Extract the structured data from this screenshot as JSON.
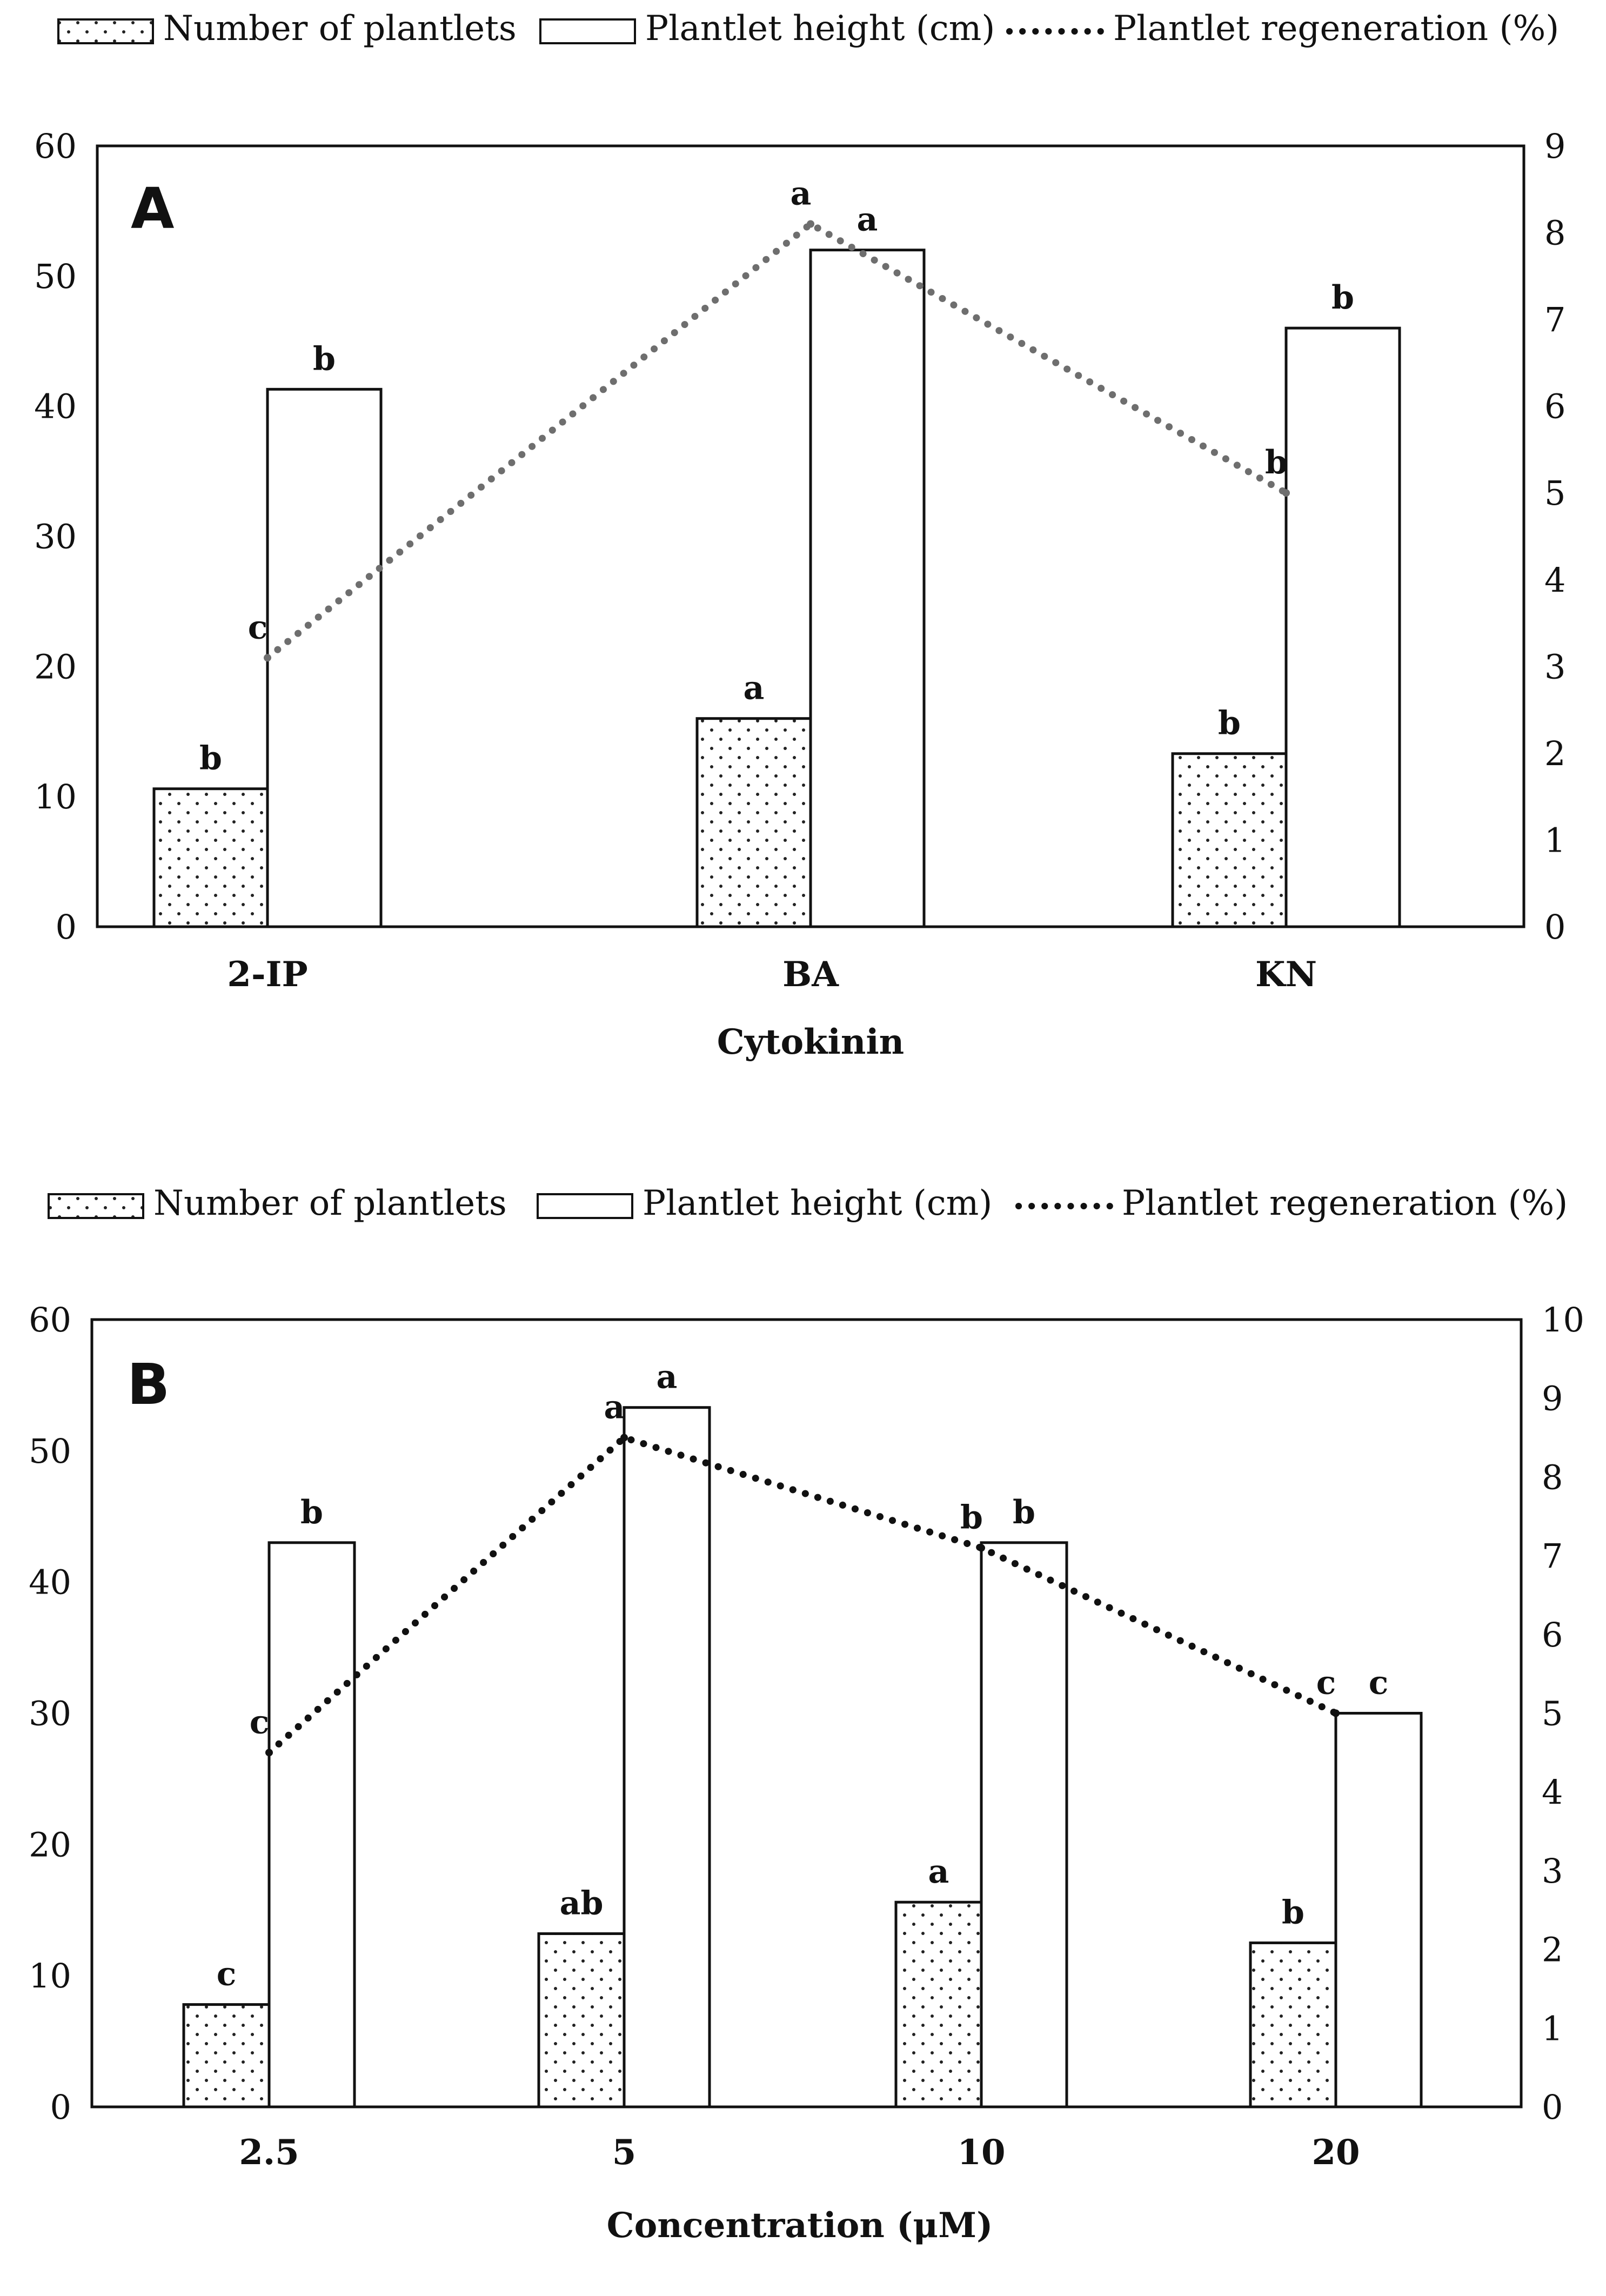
{
  "colors": {
    "axis": "#111111",
    "bar_fill": "#ffffff",
    "dot_pattern": "#222222",
    "line_a": "#6e6e6e",
    "line_b": "#111111"
  },
  "chart_data": [
    {
      "type": "bar",
      "panel_label": "A",
      "xlabel": "Cytokinin",
      "categories": [
        "2-IP",
        "BA",
        "KN"
      ],
      "ylim": [
        0,
        60
      ],
      "yticks": [
        "0",
        "10",
        "20",
        "30",
        "40",
        "50",
        "60"
      ],
      "y2lim": [
        0,
        9
      ],
      "y2ticks": [
        "0",
        "1",
        "2",
        "3",
        "4",
        "5",
        "6",
        "7",
        "8",
        "9"
      ],
      "legend": {
        "position": "top",
        "number_label": "Number of plantlets",
        "height_label": "Plantlet height (cm)",
        "regen_label": "Plantlet regeneration (%)"
      },
      "series": [
        {
          "name": "Number of plantlets",
          "style": "dotted-bar",
          "axis": "left",
          "values": [
            10.6,
            16,
            13.3
          ],
          "labels": [
            "b",
            "a",
            "b"
          ]
        },
        {
          "name": "Plantlet height (cm)",
          "style": "open-bar",
          "axis": "left",
          "values": [
            41.3,
            52,
            46
          ],
          "labels": [
            "b",
            "a",
            "b"
          ]
        },
        {
          "name": "Plantlet regeneration (%)",
          "style": "dotted-line",
          "axis": "right",
          "values": [
            3.1,
            8.1,
            5.0
          ],
          "labels": [
            "c",
            "a",
            "b"
          ]
        }
      ]
    },
    {
      "type": "bar",
      "panel_label": "B",
      "xlabel": "Concentration (μM)",
      "categories": [
        "2.5",
        "5",
        "10",
        "20"
      ],
      "ylim": [
        0,
        60
      ],
      "yticks": [
        "0",
        "10",
        "20",
        "30",
        "40",
        "50",
        "60"
      ],
      "y2lim": [
        0,
        10
      ],
      "y2ticks": [
        "0",
        "1",
        "2",
        "3",
        "4",
        "5",
        "6",
        "7",
        "8",
        "9",
        "10"
      ],
      "legend": {
        "position": "top",
        "number_label": "Number of plantlets",
        "height_label": "Plantlet height (cm)",
        "regen_label": "Plantlet regeneration (%)"
      },
      "series": [
        {
          "name": "Number of plantlets",
          "style": "dotted-bar",
          "axis": "left",
          "values": [
            7.8,
            13.2,
            15.6,
            12.5
          ],
          "labels": [
            "c",
            "ab",
            "a",
            "b"
          ]
        },
        {
          "name": "Plantlet height (cm)",
          "style": "open-bar",
          "axis": "left",
          "values": [
            43,
            53.3,
            43,
            30
          ],
          "labels": [
            "b",
            "a",
            "b",
            "c"
          ]
        },
        {
          "name": "Plantlet regeneration (%)",
          "style": "dotted-line",
          "axis": "right",
          "values": [
            4.5,
            8.5,
            7.1,
            5.0
          ],
          "labels": [
            "c",
            "a",
            "b",
            "c"
          ]
        }
      ]
    }
  ]
}
